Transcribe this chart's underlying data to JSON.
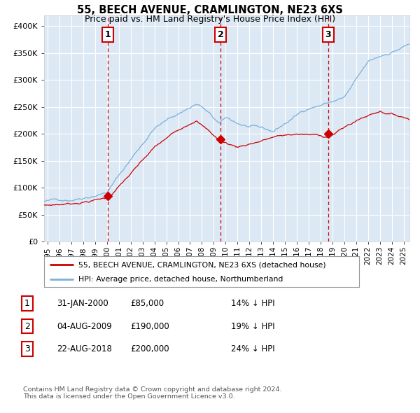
{
  "title": "55, BEECH AVENUE, CRAMLINGTON, NE23 6XS",
  "subtitle": "Price paid vs. HM Land Registry's House Price Index (HPI)",
  "bg_color": "#dce9f5",
  "plot_bg_color": "#dce9f5",
  "red_line_color": "#cc0000",
  "blue_line_color": "#7ab0d8",
  "marker_color": "#cc0000",
  "vline_color": "#cc0000",
  "grid_color": "#ffffff",
  "sale_dates": [
    2000.08,
    2009.59,
    2018.65
  ],
  "sale_prices": [
    85000,
    190000,
    200000
  ],
  "sale_labels": [
    "1",
    "2",
    "3"
  ],
  "legend_red": "55, BEECH AVENUE, CRAMLINGTON, NE23 6XS (detached house)",
  "legend_blue": "HPI: Average price, detached house, Northumberland",
  "table_data": [
    [
      "1",
      "31-JAN-2000",
      "£85,000",
      "14% ↓ HPI"
    ],
    [
      "2",
      "04-AUG-2009",
      "£190,000",
      "19% ↓ HPI"
    ],
    [
      "3",
      "22-AUG-2018",
      "£200,000",
      "24% ↓ HPI"
    ]
  ],
  "footnote": "Contains HM Land Registry data © Crown copyright and database right 2024.\nThis data is licensed under the Open Government Licence v3.0.",
  "ylim": [
    0,
    420000
  ],
  "xlim_start": 1994.7,
  "xlim_end": 2025.5,
  "yticks": [
    0,
    50000,
    100000,
    150000,
    200000,
    250000,
    300000,
    350000,
    400000
  ],
  "ytick_labels": [
    "£0",
    "£50K",
    "£100K",
    "£150K",
    "£200K",
    "£250K",
    "£300K",
    "£350K",
    "£400K"
  ]
}
